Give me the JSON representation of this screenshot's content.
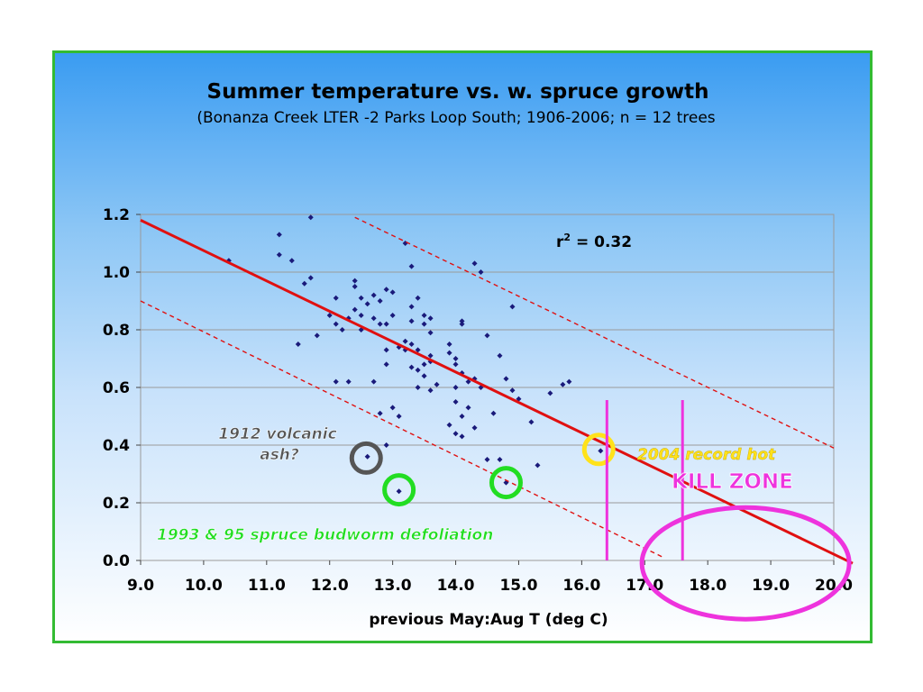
{
  "colors": {
    "points": "#1a1a7a",
    "regression": "#e01010",
    "bounds": "#e01010",
    "frame_border": "#33bb33",
    "volcanic_text": "#555555",
    "volcanic_circle": "#555555",
    "budworm": "#22dd22",
    "record_hot": "#ffe21a",
    "kill_zone": "#ee33dd",
    "gridline": "#9a9a9a"
  },
  "annotations": {
    "volcanic_line1": "1912 volcanic",
    "volcanic_line2": "ash?",
    "budworm": "1993 & 95 spruce budworm defoliation",
    "record_hot": "2004 record hot",
    "kill_zone": "KILL ZONE"
  },
  "chart_data": {
    "type": "scatter",
    "title": "Summer temperature vs. w. spruce growth",
    "subtitle": "(Bonanza Creek LTER -2 Parks Loop South; 1906-2006; n = 12 trees",
    "xlabel": "previous May:Aug T (deg C)",
    "ylabel": "",
    "xlim": [
      9.0,
      20.0
    ],
    "ylim": [
      0.0,
      1.2
    ],
    "xticks": [
      "9.0",
      "10.0",
      "11.0",
      "12.0",
      "13.0",
      "14.0",
      "15.0",
      "16.0",
      "17.0",
      "18.0",
      "19.0",
      "20.0"
    ],
    "yticks": [
      "0.0",
      "0.2",
      "0.4",
      "0.6",
      "0.8",
      "1.0",
      "1.2"
    ],
    "grid": "horizontal",
    "r_squared_label": "r",
    "r_squared_sup": "2",
    "r_squared_value": " = 0.32",
    "points": [
      [
        10.4,
        1.04
      ],
      [
        11.2,
        1.13
      ],
      [
        11.2,
        1.06
      ],
      [
        11.4,
        1.04
      ],
      [
        11.7,
        1.19
      ],
      [
        11.6,
        0.96
      ],
      [
        11.7,
        0.98
      ],
      [
        11.8,
        0.78
      ],
      [
        11.5,
        0.75
      ],
      [
        12.1,
        0.91
      ],
      [
        12.0,
        0.85
      ],
      [
        12.1,
        0.82
      ],
      [
        12.3,
        0.84
      ],
      [
        12.4,
        0.97
      ],
      [
        12.4,
        0.95
      ],
      [
        12.5,
        0.91
      ],
      [
        12.4,
        0.87
      ],
      [
        12.5,
        0.85
      ],
      [
        12.6,
        0.89
      ],
      [
        12.7,
        0.92
      ],
      [
        12.8,
        0.9
      ],
      [
        12.9,
        0.94
      ],
      [
        12.7,
        0.84
      ],
      [
        12.8,
        0.82
      ],
      [
        12.9,
        0.82
      ],
      [
        13.0,
        0.85
      ],
      [
        12.5,
        0.8
      ],
      [
        12.2,
        0.8
      ],
      [
        13.0,
        0.93
      ],
      [
        12.9,
        0.73
      ],
      [
        12.9,
        0.68
      ],
      [
        13.2,
        1.1
      ],
      [
        13.3,
        1.02
      ],
      [
        13.3,
        0.88
      ],
      [
        13.4,
        0.91
      ],
      [
        13.3,
        0.83
      ],
      [
        13.5,
        0.85
      ],
      [
        13.5,
        0.82
      ],
      [
        13.6,
        0.84
      ],
      [
        13.6,
        0.79
      ],
      [
        13.2,
        0.76
      ],
      [
        13.3,
        0.75
      ],
      [
        13.2,
        0.73
      ],
      [
        13.1,
        0.74
      ],
      [
        13.4,
        0.73
      ],
      [
        13.3,
        0.67
      ],
      [
        13.4,
        0.66
      ],
      [
        13.5,
        0.68
      ],
      [
        13.5,
        0.64
      ],
      [
        13.6,
        0.71
      ],
      [
        13.6,
        0.69
      ],
      [
        13.4,
        0.6
      ],
      [
        13.6,
        0.59
      ],
      [
        13.7,
        0.61
      ],
      [
        13.9,
        0.75
      ],
      [
        13.9,
        0.72
      ],
      [
        14.0,
        0.7
      ],
      [
        14.0,
        0.68
      ],
      [
        14.1,
        0.82
      ],
      [
        14.1,
        0.83
      ],
      [
        14.1,
        0.65
      ],
      [
        14.2,
        0.62
      ],
      [
        14.3,
        0.63
      ],
      [
        14.3,
        1.03
      ],
      [
        14.4,
        1.0
      ],
      [
        14.5,
        0.78
      ],
      [
        14.4,
        0.6
      ],
      [
        14.0,
        0.6
      ],
      [
        14.0,
        0.55
      ],
      [
        14.1,
        0.5
      ],
      [
        14.2,
        0.53
      ],
      [
        14.3,
        0.46
      ],
      [
        13.9,
        0.47
      ],
      [
        14.0,
        0.44
      ],
      [
        14.1,
        0.43
      ],
      [
        14.6,
        0.51
      ],
      [
        14.7,
        0.71
      ],
      [
        14.9,
        0.88
      ],
      [
        14.8,
        0.63
      ],
      [
        14.9,
        0.59
      ],
      [
        15.0,
        0.56
      ],
      [
        15.2,
        0.48
      ],
      [
        15.3,
        0.33
      ],
      [
        15.5,
        0.58
      ],
      [
        15.7,
        0.61
      ],
      [
        15.8,
        0.62
      ],
      [
        12.1,
        0.62
      ],
      [
        12.3,
        0.62
      ],
      [
        12.7,
        0.62
      ],
      [
        12.8,
        0.51
      ],
      [
        13.0,
        0.53
      ],
      [
        13.1,
        0.5
      ],
      [
        12.9,
        0.4
      ],
      [
        14.5,
        0.35
      ],
      [
        14.7,
        0.35
      ],
      [
        12.6,
        0.36
      ],
      [
        13.1,
        0.24
      ],
      [
        14.8,
        0.27
      ],
      [
        16.3,
        0.38
      ]
    ],
    "regression_line": {
      "x": [
        9.0,
        20.3
      ],
      "y": [
        1.18,
        -0.01
      ]
    },
    "bound_upper": {
      "x": [
        12.4,
        20.0
      ],
      "y": [
        1.19,
        0.39
      ]
    },
    "bound_lower": {
      "x": [
        9.0,
        17.3
      ],
      "y": [
        0.9,
        0.01
      ]
    },
    "markers": {
      "volcanic_circle": {
        "x": 12.58,
        "y": 0.355
      },
      "budworm_circles": [
        {
          "x": 13.1,
          "y": 0.245
        },
        {
          "x": 14.8,
          "y": 0.27
        }
      ],
      "record_hot_circle": {
        "x": 16.27,
        "y": 0.385
      },
      "kill_zone_lines_x": [
        16.4,
        17.6
      ],
      "kill_zone_ellipse": {
        "cx": 18.6,
        "cy": -0.01
      }
    }
  }
}
